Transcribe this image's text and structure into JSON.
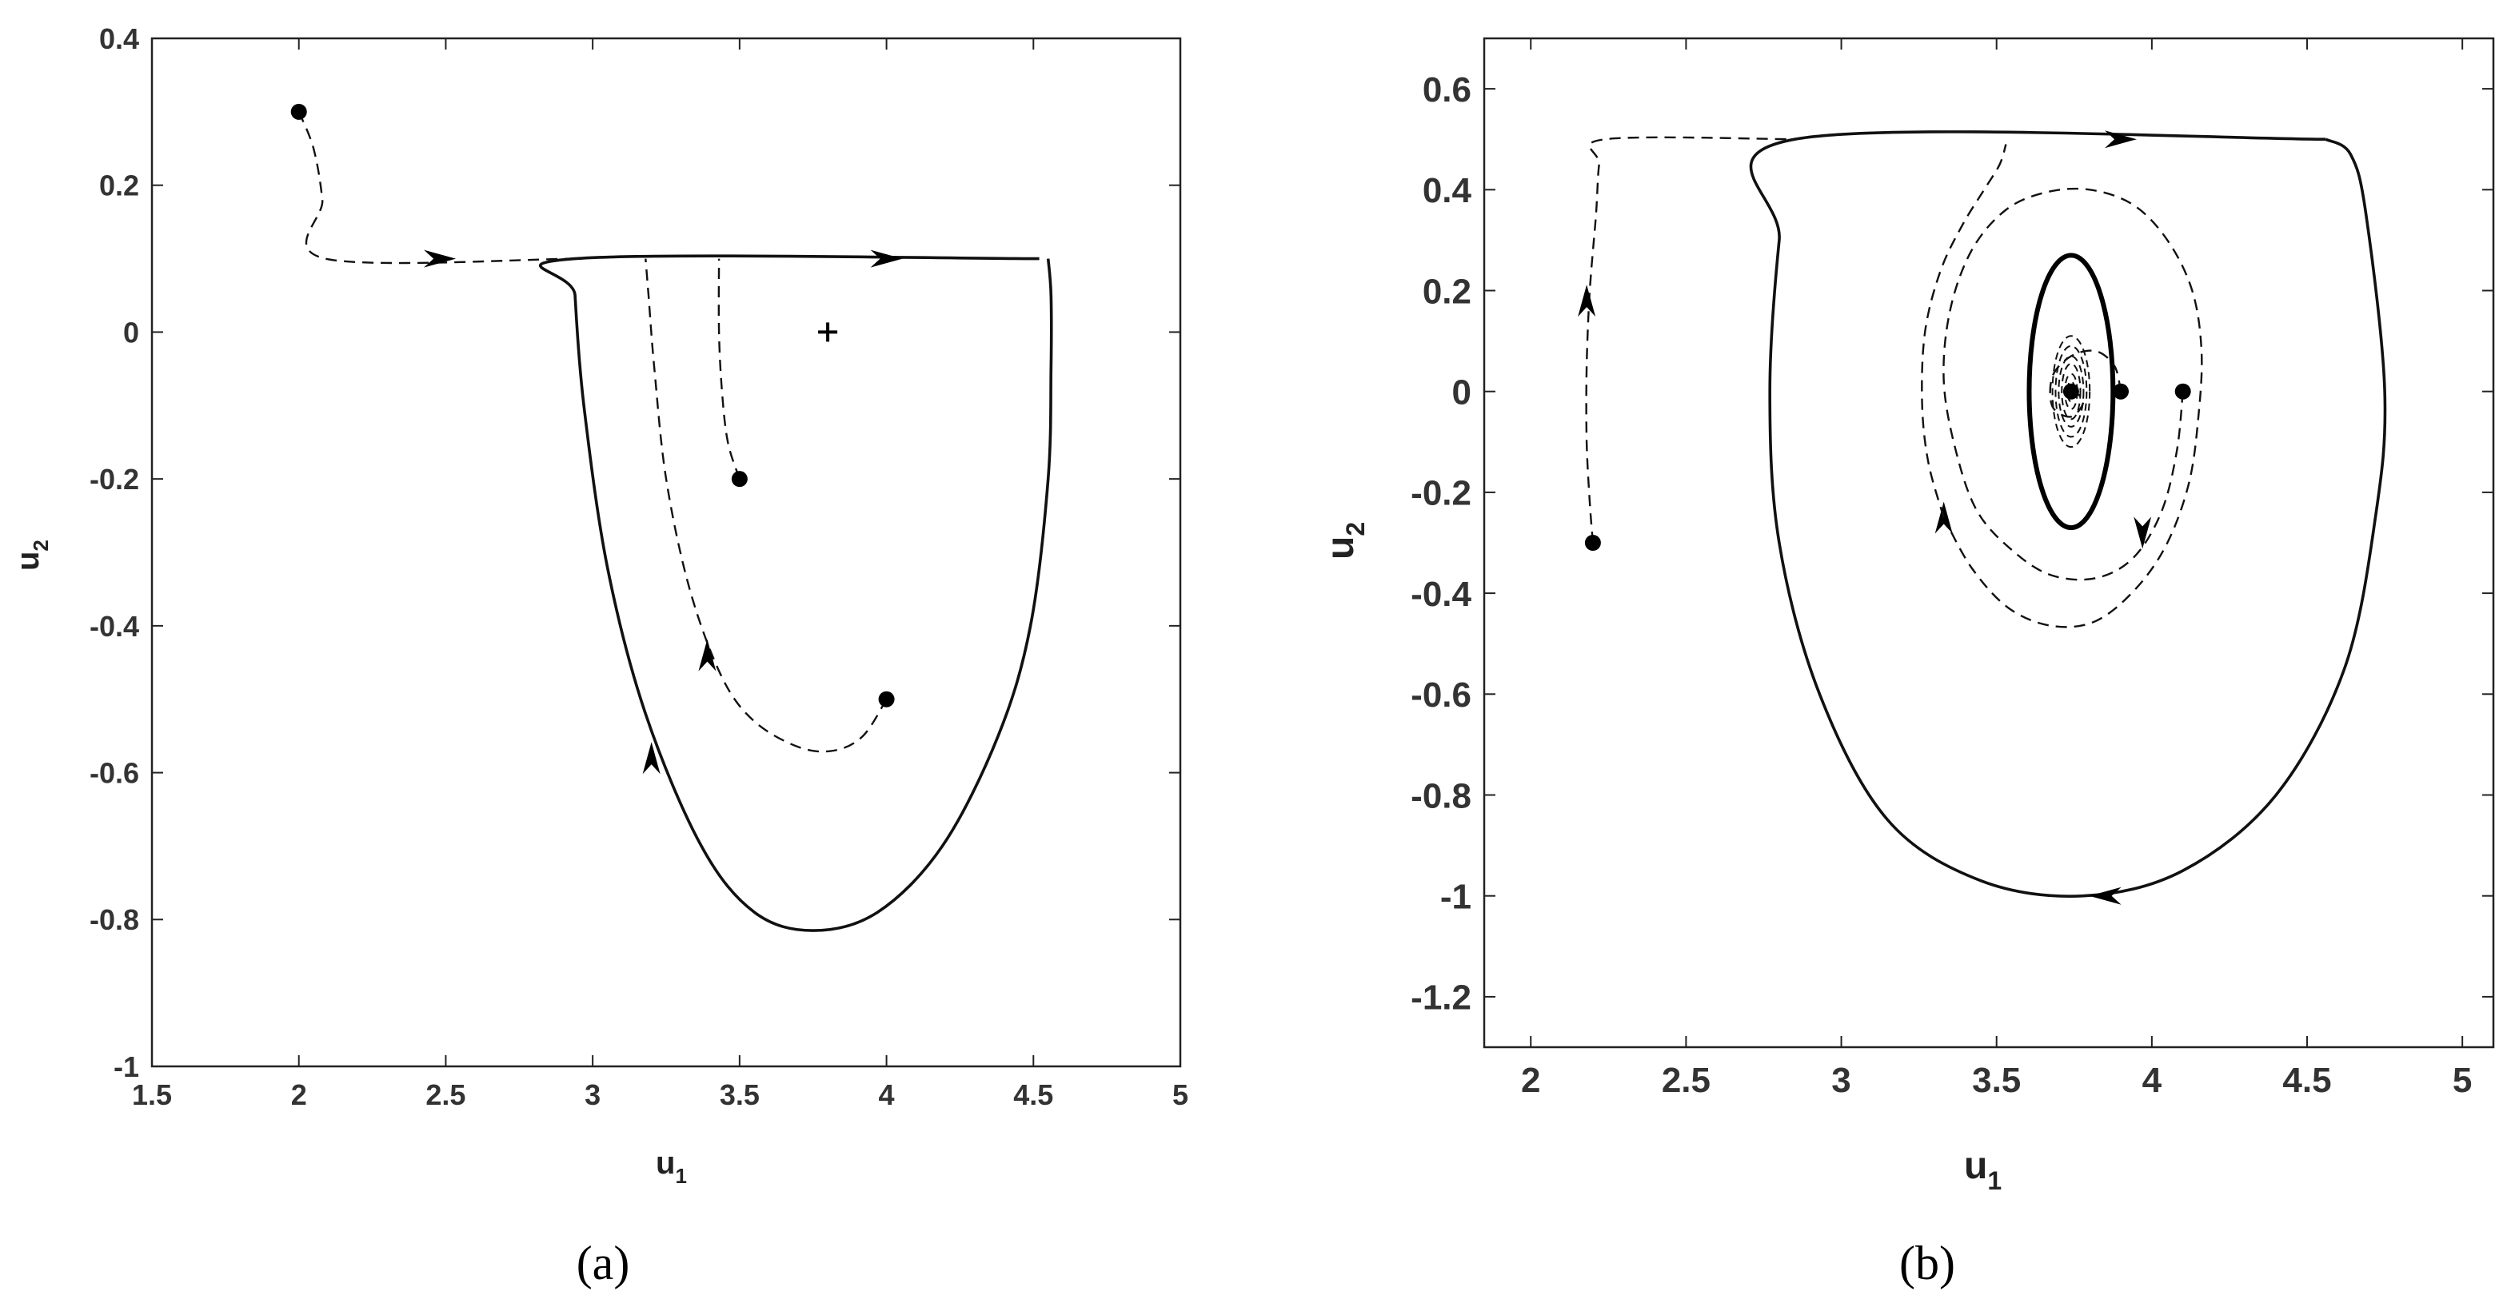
{
  "chart_data": [
    {
      "panel_label": "(a)",
      "type": "line",
      "xlabel": "u",
      "xlabel_sub": "1",
      "ylabel": "u",
      "ylabel_sub": "2",
      "xlim": [
        1.5,
        5
      ],
      "ylim": [
        -1,
        0.4
      ],
      "xticks": [
        1.5,
        2,
        2.5,
        3,
        3.5,
        4,
        4.5,
        5
      ],
      "xtick_labels": [
        "1.5",
        "2",
        "2.5",
        "3",
        "3.5",
        "4",
        "4.5",
        "5"
      ],
      "yticks": [
        0.4,
        0.2,
        0,
        -0.2,
        -0.4,
        -0.6,
        -0.8,
        -1
      ],
      "ytick_labels": [
        "0.4",
        "0.2",
        "0",
        "-0.2",
        "-0.4",
        "-0.6",
        "-0.8",
        "-1"
      ],
      "equilibrium": {
        "marker": "+",
        "x": 3.8,
        "y": 0
      },
      "curves": [
        {
          "style": "solid",
          "points": [
            [
              4.55,
              0.1
            ],
            [
              4.56,
              0.05
            ],
            [
              4.56,
              -0.05
            ],
            [
              4.55,
              -0.2
            ],
            [
              4.49,
              -0.4
            ],
            [
              4.38,
              -0.55
            ],
            [
              4.19,
              -0.7
            ],
            [
              3.97,
              -0.79
            ],
            [
              3.75,
              -0.815
            ],
            [
              3.55,
              -0.79
            ],
            [
              3.37,
              -0.7
            ],
            [
              3.18,
              -0.52
            ],
            [
              3.05,
              -0.32
            ],
            [
              2.97,
              -0.1
            ],
            [
              2.94,
              0.05
            ],
            [
              2.94,
              0.1
            ],
            [
              4.52,
              0.1
            ]
          ],
          "arrows": [
            {
              "x": 3.2,
              "y": -0.58,
              "dir": "up"
            },
            {
              "x": 4.0,
              "y": 0.1,
              "dir": "right"
            }
          ]
        },
        {
          "style": "dashed",
          "points": [
            [
              2.0,
              0.3
            ],
            [
              2.05,
              0.25
            ],
            [
              2.08,
              0.18
            ],
            [
              2.09,
              0.1
            ],
            [
              2.94,
              0.1
            ]
          ],
          "markers": [
            [
              2.0,
              0.3
            ]
          ],
          "arrows": [
            {
              "x": 2.48,
              "y": 0.1,
              "dir": "right"
            }
          ]
        },
        {
          "style": "dashed",
          "points": [
            [
              4.0,
              -0.5
            ],
            [
              3.92,
              -0.55
            ],
            [
              3.82,
              -0.57
            ],
            [
              3.7,
              -0.565
            ],
            [
              3.55,
              -0.53
            ],
            [
              3.44,
              -0.47
            ],
            [
              3.33,
              -0.35
            ],
            [
              3.25,
              -0.2
            ],
            [
              3.21,
              -0.05
            ],
            [
              3.19,
              0.05
            ],
            [
              3.18,
              0.1
            ]
          ],
          "markers": [
            [
              4.0,
              -0.5
            ]
          ],
          "arrows": [
            {
              "x": 3.39,
              "y": -0.44,
              "dir": "up"
            }
          ]
        },
        {
          "style": "dashed",
          "points": [
            [
              3.5,
              -0.2
            ],
            [
              3.46,
              -0.15
            ],
            [
              3.44,
              -0.08
            ],
            [
              3.43,
              0.0
            ],
            [
              3.43,
              0.1
            ]
          ],
          "markers": [
            [
              3.5,
              -0.2
            ]
          ],
          "arrows": []
        }
      ]
    },
    {
      "panel_label": "(b)",
      "type": "line",
      "xlabel": "u",
      "xlabel_sub": "1",
      "ylabel": "u",
      "ylabel_sub": "2",
      "xlim": [
        1.85,
        5.1
      ],
      "ylim": [
        -1.3,
        0.7
      ],
      "xticks": [
        2,
        2.5,
        3,
        3.5,
        4,
        4.5,
        5
      ],
      "xtick_labels": [
        "2",
        "2.5",
        "3",
        "3.5",
        "4",
        "4.5",
        "5"
      ],
      "yticks": [
        0.6,
        0.4,
        0.2,
        0,
        -0.2,
        -0.4,
        -0.6,
        -0.8,
        -1,
        -1.2
      ],
      "ytick_labels": [
        "0.6",
        "0.4",
        "0.2",
        "0",
        "-0.2",
        "-0.4",
        "-0.6",
        "-0.8",
        "-1",
        "-1.2"
      ],
      "center": {
        "x": 3.74,
        "y": 0
      },
      "outer_orbit": {
        "style": "solid",
        "top_y": 0.5,
        "x_start": 2.85,
        "x_end": 4.56,
        "x_max": 4.75,
        "x_min": 2.77,
        "bottom_y": -1.0,
        "bottom_x": 3.78,
        "arrows": [
          {
            "x": 3.9,
            "y": 0.5,
            "dir": "right"
          },
          {
            "x": 3.85,
            "y": -1.0,
            "dir": "left"
          }
        ]
      },
      "limit_cycle": {
        "style": "solid-bold",
        "cx": 3.74,
        "cy": 0,
        "rx": 0.135,
        "ry": 0.27
      },
      "spiral": {
        "style": "dashed",
        "cx": 3.74,
        "cy": 0,
        "rings": [
          [
            0.06,
            0.11
          ],
          [
            0.05,
            0.09
          ],
          [
            0.04,
            0.07
          ],
          [
            0.03,
            0.055
          ],
          [
            0.02,
            0.035
          ],
          [
            0.012,
            0.02
          ]
        ]
      },
      "curves": [
        {
          "style": "dashed",
          "points": [
            [
              2.2,
              -0.3
            ],
            [
              2.19,
              -0.22
            ],
            [
              2.18,
              -0.1
            ],
            [
              2.18,
              0.05
            ],
            [
              2.19,
              0.2
            ],
            [
              2.21,
              0.35
            ],
            [
              2.22,
              0.45
            ],
            [
              2.24,
              0.5
            ],
            [
              2.85,
              0.5
            ]
          ],
          "markers": [
            [
              2.2,
              -0.3
            ]
          ],
          "arrows": [
            {
              "x": 2.18,
              "y": 0.18,
              "dir": "up"
            }
          ]
        },
        {
          "style": "dashed",
          "points": [
            [
              4.1,
              0.0
            ],
            [
              4.08,
              -0.12
            ],
            [
              4.03,
              -0.24
            ],
            [
              3.94,
              -0.33
            ],
            [
              3.82,
              -0.37
            ],
            [
              3.68,
              -0.365
            ],
            [
              3.56,
              -0.32
            ],
            [
              3.44,
              -0.24
            ],
            [
              3.37,
              -0.12
            ],
            [
              3.33,
              0.02
            ],
            [
              3.35,
              0.16
            ],
            [
              3.42,
              0.28
            ],
            [
              3.53,
              0.36
            ],
            [
              3.66,
              0.395
            ],
            [
              3.8,
              0.4
            ],
            [
              3.94,
              0.37
            ],
            [
              4.05,
              0.3
            ],
            [
              4.13,
              0.2
            ],
            [
              4.16,
              0.08
            ],
            [
              4.15,
              -0.05
            ],
            [
              4.12,
              -0.18
            ],
            [
              4.05,
              -0.3
            ],
            [
              3.95,
              -0.39
            ],
            [
              3.82,
              -0.455
            ],
            [
              3.68,
              -0.465
            ],
            [
              3.54,
              -0.43
            ],
            [
              3.42,
              -0.35
            ],
            [
              3.33,
              -0.25
            ]
          ],
          "markers": [
            [
              4.1,
              0.0
            ]
          ],
          "arrows": [
            {
              "x": 3.97,
              "y": -0.28,
              "dir": "down"
            },
            {
              "x": 3.33,
              "y": -0.25,
              "dir": "up"
            }
          ]
        },
        {
          "style": "dashed",
          "points": [
            [
              3.33,
              -0.25
            ],
            [
              3.28,
              -0.14
            ],
            [
              3.26,
              -0.02
            ],
            [
              3.27,
              0.12
            ],
            [
              3.32,
              0.24
            ],
            [
              3.39,
              0.33
            ],
            [
              3.46,
              0.4
            ],
            [
              3.51,
              0.45
            ],
            [
              3.53,
              0.49
            ]
          ],
          "markers": [],
          "arrows": []
        },
        {
          "style": "dashed",
          "points": [
            [
              3.9,
              0.0
            ],
            [
              3.88,
              0.05
            ],
            [
              3.82,
              0.08
            ],
            [
              3.74,
              0.07
            ],
            [
              3.68,
              0.03
            ],
            [
              3.68,
              -0.03
            ],
            [
              3.74,
              -0.05
            ],
            [
              3.78,
              -0.02
            ],
            [
              3.75,
              0.0
            ]
          ],
          "markers": [
            [
              3.9,
              0.0
            ],
            [
              3.74,
              0.0
            ]
          ],
          "arrows": []
        }
      ]
    }
  ]
}
